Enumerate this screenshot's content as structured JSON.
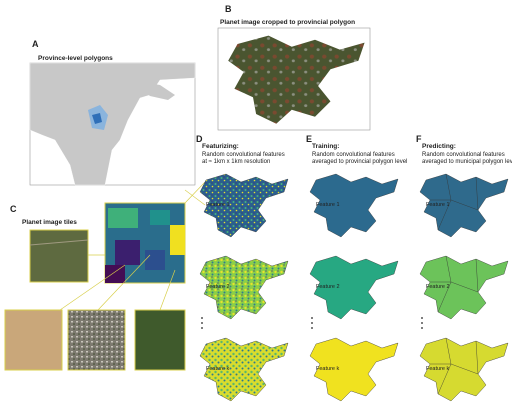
{
  "panels": {
    "A": {
      "letter": "A",
      "title": "Province-level polygons"
    },
    "B": {
      "letter": "B",
      "title": "Planet image cropped to provincial polygon"
    },
    "C": {
      "letter": "C",
      "title": "Planet image tiles"
    },
    "D": {
      "letter": "D",
      "title": "Featurizing:",
      "lines": [
        "Random convolutional features",
        "at ≈ 1km x 1km resolution"
      ],
      "features": [
        "Feature 1",
        "Feature 2",
        "Feature k"
      ]
    },
    "E": {
      "letter": "E",
      "title": "Training:",
      "lines": [
        "Random convolutional features",
        "averaged to provincial polygon level"
      ],
      "features": [
        "Feature 1",
        "Feature 2",
        "Feature k"
      ]
    },
    "F": {
      "letter": "F",
      "title": "Predicting:",
      "lines": [
        "Random convolutional features",
        "averaged to municipal polygon level"
      ],
      "features": [
        "Feature 1",
        "Feature 2",
        "Feature k"
      ]
    }
  }
}
